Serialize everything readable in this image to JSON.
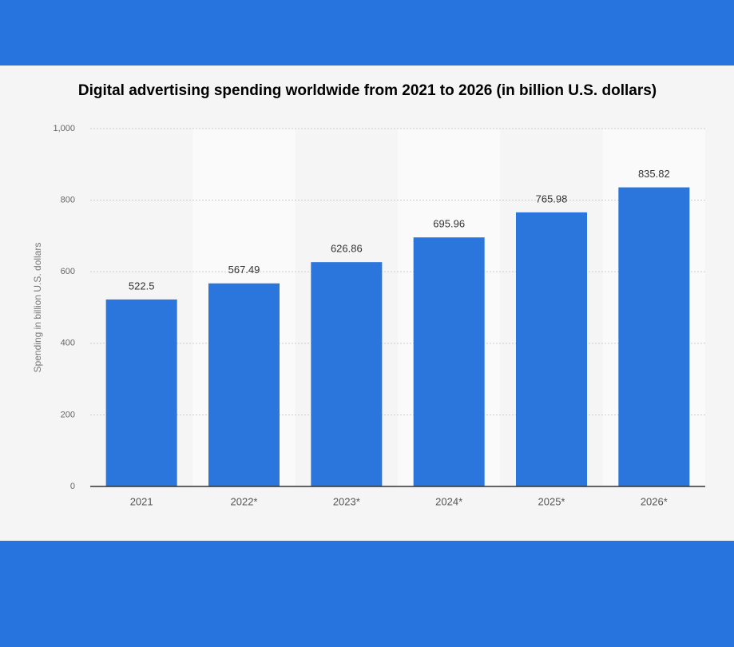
{
  "chart_data": {
    "type": "bar",
    "title": "Digital advertising spending worldwide from 2021 to 2026 (in billion U.S. dollars)",
    "y_label": "Spending in billion U.S. dollars",
    "categories": [
      "2021",
      "2022*",
      "2023*",
      "2024*",
      "2025*",
      "2026*"
    ],
    "values": [
      522.5,
      567.49,
      626.86,
      695.96,
      765.98,
      835.82
    ],
    "color": "#2a76dd",
    "ylim": [
      0,
      1000
    ],
    "yticks": [
      0,
      200,
      400,
      600,
      800,
      {
        "value": 1000,
        "label": "1,000"
      }
    ],
    "grid": true
  }
}
